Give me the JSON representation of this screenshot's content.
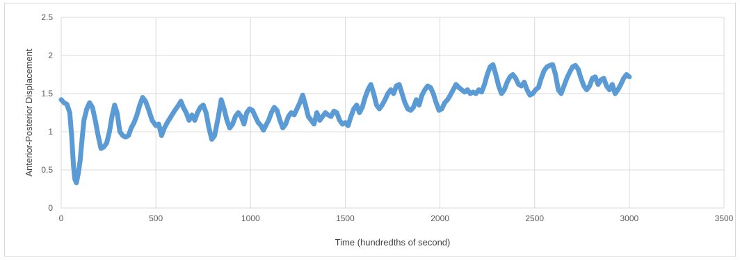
{
  "chart_data": {
    "type": "line",
    "xlabel": "Time (hundredths of second)",
    "ylabel": "Anterior-Posterior Displacement",
    "xlim": [
      0,
      3500
    ],
    "ylim": [
      0,
      2.5
    ],
    "x_ticks": [
      "0",
      "500",
      "1000",
      "1500",
      "2000",
      "2500",
      "3000",
      "3500"
    ],
    "y_ticks": [
      "0",
      "0.5",
      "1",
      "1.5",
      "2",
      "2.5"
    ],
    "grid": true,
    "series_color": "#5b9bd5",
    "series": [
      {
        "points": [
          [
            0,
            1.42
          ],
          [
            15,
            1.38
          ],
          [
            30,
            1.36
          ],
          [
            45,
            1.25
          ],
          [
            55,
            0.95
          ],
          [
            65,
            0.55
          ],
          [
            72,
            0.38
          ],
          [
            80,
            0.33
          ],
          [
            90,
            0.45
          ],
          [
            100,
            0.62
          ],
          [
            110,
            0.9
          ],
          [
            120,
            1.15
          ],
          [
            135,
            1.3
          ],
          [
            150,
            1.38
          ],
          [
            165,
            1.32
          ],
          [
            180,
            1.15
          ],
          [
            195,
            0.95
          ],
          [
            210,
            0.78
          ],
          [
            225,
            0.8
          ],
          [
            240,
            0.85
          ],
          [
            255,
            1.0
          ],
          [
            268,
            1.2
          ],
          [
            282,
            1.35
          ],
          [
            295,
            1.25
          ],
          [
            310,
            1.0
          ],
          [
            325,
            0.95
          ],
          [
            340,
            0.93
          ],
          [
            355,
            0.95
          ],
          [
            370,
            1.05
          ],
          [
            385,
            1.12
          ],
          [
            400,
            1.22
          ],
          [
            415,
            1.35
          ],
          [
            430,
            1.45
          ],
          [
            445,
            1.4
          ],
          [
            460,
            1.3
          ],
          [
            480,
            1.15
          ],
          [
            500,
            1.08
          ],
          [
            515,
            1.1
          ],
          [
            530,
            0.95
          ],
          [
            545,
            1.05
          ],
          [
            560,
            1.12
          ],
          [
            580,
            1.2
          ],
          [
            600,
            1.28
          ],
          [
            620,
            1.35
          ],
          [
            632,
            1.4
          ],
          [
            645,
            1.32
          ],
          [
            660,
            1.25
          ],
          [
            675,
            1.15
          ],
          [
            690,
            1.22
          ],
          [
            705,
            1.15
          ],
          [
            720,
            1.25
          ],
          [
            735,
            1.32
          ],
          [
            750,
            1.35
          ],
          [
            765,
            1.25
          ],
          [
            780,
            1.05
          ],
          [
            795,
            0.9
          ],
          [
            810,
            0.95
          ],
          [
            830,
            1.2
          ],
          [
            845,
            1.42
          ],
          [
            860,
            1.3
          ],
          [
            875,
            1.15
          ],
          [
            890,
            1.05
          ],
          [
            905,
            1.1
          ],
          [
            920,
            1.2
          ],
          [
            935,
            1.25
          ],
          [
            950,
            1.2
          ],
          [
            965,
            1.1
          ],
          [
            980,
            1.25
          ],
          [
            995,
            1.3
          ],
          [
            1010,
            1.28
          ],
          [
            1025,
            1.2
          ],
          [
            1040,
            1.12
          ],
          [
            1055,
            1.08
          ],
          [
            1068,
            1.02
          ],
          [
            1080,
            1.08
          ],
          [
            1095,
            1.15
          ],
          [
            1110,
            1.25
          ],
          [
            1125,
            1.32
          ],
          [
            1140,
            1.28
          ],
          [
            1155,
            1.15
          ],
          [
            1170,
            1.05
          ],
          [
            1185,
            1.1
          ],
          [
            1200,
            1.2
          ],
          [
            1215,
            1.25
          ],
          [
            1230,
            1.22
          ],
          [
            1245,
            1.3
          ],
          [
            1260,
            1.38
          ],
          [
            1275,
            1.48
          ],
          [
            1290,
            1.35
          ],
          [
            1305,
            1.2
          ],
          [
            1320,
            1.15
          ],
          [
            1335,
            1.1
          ],
          [
            1350,
            1.25
          ],
          [
            1365,
            1.15
          ],
          [
            1380,
            1.2
          ],
          [
            1395,
            1.25
          ],
          [
            1410,
            1.22
          ],
          [
            1425,
            1.2
          ],
          [
            1440,
            1.27
          ],
          [
            1455,
            1.25
          ],
          [
            1470,
            1.15
          ],
          [
            1485,
            1.1
          ],
          [
            1500,
            1.12
          ],
          [
            1515,
            1.08
          ],
          [
            1530,
            1.2
          ],
          [
            1545,
            1.3
          ],
          [
            1560,
            1.35
          ],
          [
            1575,
            1.25
          ],
          [
            1590,
            1.32
          ],
          [
            1605,
            1.45
          ],
          [
            1620,
            1.55
          ],
          [
            1635,
            1.62
          ],
          [
            1650,
            1.5
          ],
          [
            1665,
            1.35
          ],
          [
            1680,
            1.3
          ],
          [
            1695,
            1.35
          ],
          [
            1710,
            1.42
          ],
          [
            1725,
            1.5
          ],
          [
            1740,
            1.55
          ],
          [
            1755,
            1.5
          ],
          [
            1770,
            1.6
          ],
          [
            1785,
            1.62
          ],
          [
            1800,
            1.5
          ],
          [
            1815,
            1.38
          ],
          [
            1830,
            1.3
          ],
          [
            1845,
            1.28
          ],
          [
            1860,
            1.32
          ],
          [
            1875,
            1.42
          ],
          [
            1890,
            1.35
          ],
          [
            1905,
            1.48
          ],
          [
            1920,
            1.55
          ],
          [
            1935,
            1.6
          ],
          [
            1950,
            1.58
          ],
          [
            1965,
            1.5
          ],
          [
            1980,
            1.38
          ],
          [
            1995,
            1.28
          ],
          [
            2010,
            1.3
          ],
          [
            2025,
            1.38
          ],
          [
            2040,
            1.42
          ],
          [
            2055,
            1.48
          ],
          [
            2070,
            1.55
          ],
          [
            2085,
            1.62
          ],
          [
            2100,
            1.58
          ],
          [
            2115,
            1.55
          ],
          [
            2130,
            1.52
          ],
          [
            2145,
            1.55
          ],
          [
            2160,
            1.5
          ],
          [
            2175,
            1.52
          ],
          [
            2190,
            1.5
          ],
          [
            2205,
            1.55
          ],
          [
            2220,
            1.52
          ],
          [
            2235,
            1.62
          ],
          [
            2250,
            1.75
          ],
          [
            2265,
            1.85
          ],
          [
            2280,
            1.88
          ],
          [
            2295,
            1.75
          ],
          [
            2310,
            1.6
          ],
          [
            2325,
            1.5
          ],
          [
            2340,
            1.55
          ],
          [
            2355,
            1.65
          ],
          [
            2370,
            1.72
          ],
          [
            2385,
            1.75
          ],
          [
            2400,
            1.7
          ],
          [
            2415,
            1.62
          ],
          [
            2430,
            1.6
          ],
          [
            2445,
            1.65
          ],
          [
            2460,
            1.55
          ],
          [
            2475,
            1.48
          ],
          [
            2490,
            1.5
          ],
          [
            2505,
            1.55
          ],
          [
            2520,
            1.58
          ],
          [
            2535,
            1.7
          ],
          [
            2550,
            1.8
          ],
          [
            2565,
            1.85
          ],
          [
            2580,
            1.87
          ],
          [
            2595,
            1.88
          ],
          [
            2610,
            1.75
          ],
          [
            2625,
            1.55
          ],
          [
            2640,
            1.5
          ],
          [
            2655,
            1.6
          ],
          [
            2670,
            1.7
          ],
          [
            2685,
            1.78
          ],
          [
            2700,
            1.85
          ],
          [
            2715,
            1.87
          ],
          [
            2730,
            1.82
          ],
          [
            2745,
            1.7
          ],
          [
            2760,
            1.6
          ],
          [
            2775,
            1.55
          ],
          [
            2790,
            1.6
          ],
          [
            2805,
            1.7
          ],
          [
            2820,
            1.72
          ],
          [
            2835,
            1.62
          ],
          [
            2850,
            1.68
          ],
          [
            2865,
            1.7
          ],
          [
            2880,
            1.6
          ],
          [
            2895,
            1.55
          ],
          [
            2910,
            1.62
          ],
          [
            2925,
            1.5
          ],
          [
            2940,
            1.55
          ],
          [
            2955,
            1.62
          ],
          [
            2970,
            1.7
          ],
          [
            2985,
            1.75
          ],
          [
            3000,
            1.72
          ]
        ]
      }
    ]
  }
}
